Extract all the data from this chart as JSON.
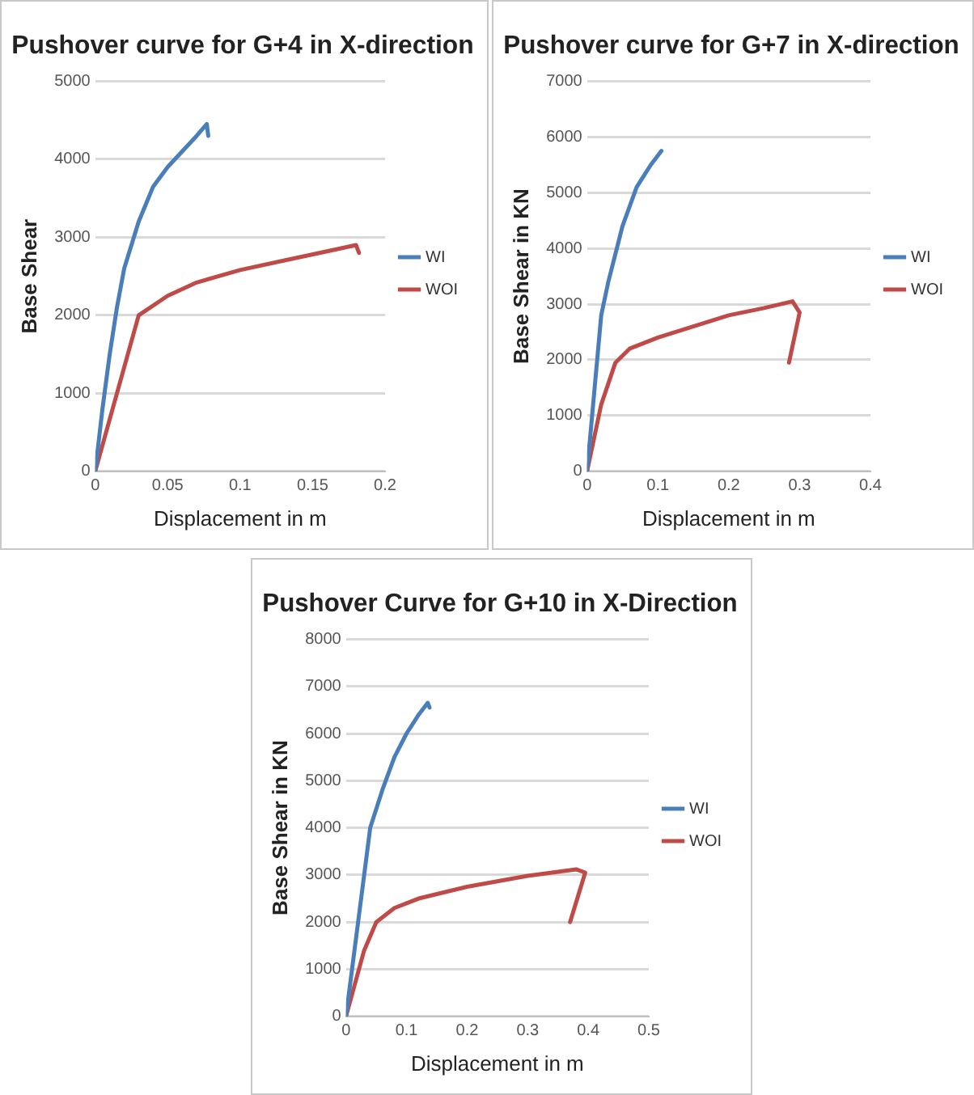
{
  "chart_data": [
    {
      "type": "line",
      "title": "Pushover curve for G+4 in X-direction",
      "xlabel": "Displacement in m",
      "ylabel": "Base Shear",
      "xlim": [
        0,
        0.2
      ],
      "xticks": [
        0,
        0.05,
        0.1,
        0.15,
        0.2
      ],
      "ylim": [
        0,
        5000
      ],
      "yticks": [
        0,
        1000,
        2000,
        3000,
        4000,
        5000
      ],
      "grid": "y",
      "legend": "right",
      "marker": "none",
      "line_style": "solid",
      "series": [
        {
          "name": "WI",
          "color": "#4a7ebb",
          "x": [
            0,
            0.005,
            0.01,
            0.015,
            0.02,
            0.03,
            0.04,
            0.05,
            0.06,
            0.07,
            0.077,
            0.078
          ],
          "values": [
            0,
            800,
            1500,
            2100,
            2600,
            3200,
            3650,
            3900,
            4100,
            4300,
            4450,
            4300
          ]
        },
        {
          "name": "WOI",
          "color": "#be4b48",
          "x": [
            0,
            0.03,
            0.05,
            0.07,
            0.1,
            0.13,
            0.16,
            0.18,
            0.182
          ],
          "values": [
            0,
            2000,
            2250,
            2420,
            2580,
            2700,
            2820,
            2900,
            2800
          ]
        }
      ]
    },
    {
      "type": "line",
      "title": "Pushover curve for G+7 in X-direction",
      "xlabel": "Displacement in m",
      "ylabel": "Base Shear in KN",
      "xlim": [
        0,
        0.4
      ],
      "xticks": [
        0,
        0.1,
        0.2,
        0.3,
        0.4
      ],
      "ylim": [
        0,
        7000
      ],
      "yticks": [
        0,
        1000,
        2000,
        3000,
        4000,
        5000,
        6000,
        7000
      ],
      "grid": "y",
      "legend": "right",
      "marker": "none",
      "line_style": "solid",
      "series": [
        {
          "name": "WI",
          "color": "#4a7ebb",
          "x": [
            0,
            0.01,
            0.02,
            0.03,
            0.05,
            0.07,
            0.09,
            0.105
          ],
          "values": [
            0,
            1400,
            2800,
            3400,
            4400,
            5100,
            5500,
            5750
          ]
        },
        {
          "name": "WOI",
          "color": "#be4b48",
          "x": [
            0,
            0.02,
            0.04,
            0.06,
            0.1,
            0.15,
            0.2,
            0.25,
            0.29,
            0.3,
            0.285
          ],
          "values": [
            0,
            1200,
            1950,
            2200,
            2400,
            2600,
            2800,
            2930,
            3050,
            2850,
            1950
          ]
        }
      ]
    },
    {
      "type": "line",
      "title": "Pushover Curve for G+10 in X-Direction",
      "xlabel": "Displacement in m",
      "ylabel": "Base Shear in KN",
      "xlim": [
        0,
        0.5
      ],
      "xticks": [
        0,
        0.1,
        0.2,
        0.3,
        0.4,
        0.5
      ],
      "ylim": [
        0,
        8000
      ],
      "yticks": [
        0,
        1000,
        2000,
        3000,
        4000,
        5000,
        6000,
        7000,
        8000
      ],
      "grid": "y",
      "legend": "right",
      "marker": "none",
      "line_style": "solid",
      "series": [
        {
          "name": "WI",
          "color": "#4a7ebb",
          "x": [
            0,
            0.02,
            0.04,
            0.06,
            0.08,
            0.1,
            0.12,
            0.135,
            0.138
          ],
          "values": [
            0,
            2000,
            4000,
            4800,
            5500,
            6000,
            6400,
            6650,
            6550
          ]
        },
        {
          "name": "WOI",
          "color": "#be4b48",
          "x": [
            0,
            0.03,
            0.05,
            0.08,
            0.12,
            0.2,
            0.3,
            0.38,
            0.395,
            0.37
          ],
          "values": [
            0,
            1400,
            2000,
            2300,
            2500,
            2750,
            2980,
            3120,
            3050,
            2000
          ]
        }
      ]
    }
  ]
}
